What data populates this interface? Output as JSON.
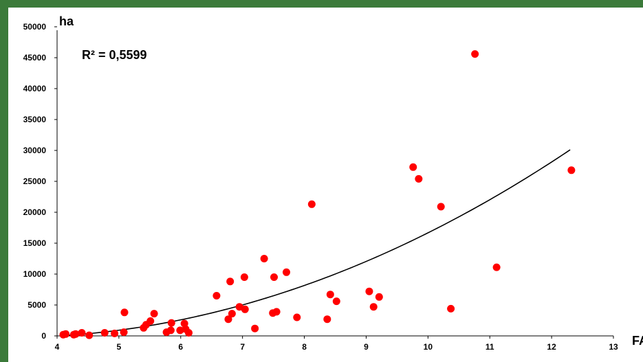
{
  "chart_data": {
    "type": "scatter",
    "ylabel": "ha",
    "xlabel": "FAI",
    "annotation": "R² = 0,5599",
    "xlim": [
      4,
      13
    ],
    "ylim": [
      0,
      50000
    ],
    "x_ticks": [
      "4",
      "5",
      "6",
      "7",
      "8",
      "9",
      "10",
      "11",
      "12",
      "13"
    ],
    "y_ticks": [
      "0",
      "5000",
      "10000",
      "15000",
      "20000",
      "25000",
      "30000",
      "35000",
      "40000",
      "45000",
      "50000"
    ],
    "grid": false,
    "legend": "none",
    "point_color": "#ff0000",
    "trend_color": "#000000",
    "trendline": {
      "type": "polynomial",
      "x_range": [
        4.1,
        12.3
      ]
    },
    "series": [
      {
        "points": [
          [
            4.1,
            200
          ],
          [
            4.14,
            300
          ],
          [
            4.27,
            200
          ],
          [
            4.3,
            300
          ],
          [
            4.4,
            500
          ],
          [
            4.52,
            100
          ],
          [
            4.77,
            500
          ],
          [
            4.93,
            400
          ],
          [
            5.08,
            600
          ],
          [
            5.09,
            3800
          ],
          [
            5.4,
            1300
          ],
          [
            5.44,
            1800
          ],
          [
            5.51,
            2400
          ],
          [
            5.57,
            3600
          ],
          [
            5.77,
            600
          ],
          [
            5.84,
            900
          ],
          [
            5.85,
            2100
          ],
          [
            5.99,
            900
          ],
          [
            6.06,
            2000
          ],
          [
            6.08,
            1100
          ],
          [
            6.13,
            500
          ],
          [
            6.58,
            6500
          ],
          [
            6.77,
            2700
          ],
          [
            6.8,
            8800
          ],
          [
            6.83,
            3600
          ],
          [
            6.95,
            4700
          ],
          [
            7.03,
            9500
          ],
          [
            7.04,
            4300
          ],
          [
            7.2,
            1200
          ],
          [
            7.35,
            12500
          ],
          [
            7.49,
            3700
          ],
          [
            7.51,
            9500
          ],
          [
            7.55,
            3900
          ],
          [
            7.71,
            10300
          ],
          [
            7.88,
            3000
          ],
          [
            8.12,
            21300
          ],
          [
            8.37,
            2700
          ],
          [
            8.42,
            6700
          ],
          [
            8.52,
            5600
          ],
          [
            9.05,
            7200
          ],
          [
            9.12,
            4700
          ],
          [
            9.21,
            6300
          ],
          [
            9.76,
            27300
          ],
          [
            9.85,
            25400
          ],
          [
            10.21,
            20900
          ],
          [
            10.37,
            4400
          ],
          [
            10.76,
            45600
          ],
          [
            11.11,
            11100
          ],
          [
            12.32,
            26800
          ]
        ]
      }
    ]
  }
}
